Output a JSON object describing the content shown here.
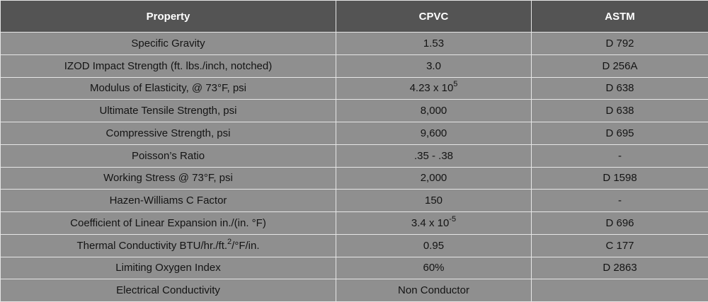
{
  "table": {
    "headers": [
      "Property",
      "CPVC",
      "ASTM"
    ],
    "rows": [
      {
        "property": "Specific Gravity",
        "cpvc": "1.53",
        "astm": "D 792"
      },
      {
        "property": "IZOD Impact Strength (ft. lbs./inch, notched)",
        "cpvc": "3.0",
        "astm": "D 256A"
      },
      {
        "property": "Modulus of Elasticity, @ 73°F, psi",
        "cpvc": "4.23 x 10",
        "cpvc_sup": "5",
        "astm": "D 638"
      },
      {
        "property": "Ultimate Tensile Strength, psi",
        "cpvc": "8,000",
        "astm": "D 638"
      },
      {
        "property": "Compressive Strength, psi",
        "cpvc": "9,600",
        "astm": "D 695"
      },
      {
        "property": "Poisson’s Ratio",
        "cpvc": ".35 - .38",
        "astm": "-"
      },
      {
        "property": "Working Stress @ 73°F, psi",
        "cpvc": "2,000",
        "astm": "D 1598"
      },
      {
        "property": "Hazen-Williams C Factor",
        "cpvc": "150",
        "astm": "-"
      },
      {
        "property": "Coefficient of Linear Expansion in./(in. °F)",
        "cpvc": "3.4 x 10",
        "cpvc_sup": "-5",
        "astm": "D 696"
      },
      {
        "property": "Thermal Conductivity BTU/hr./ft.",
        "property_sup": "2",
        "property_tail": "/°F/in.",
        "cpvc": "0.95",
        "astm": "C 177"
      },
      {
        "property": "Limiting Oxygen Index",
        "cpvc": "60%",
        "astm": "D 2863"
      },
      {
        "property": "Electrical Conductivity",
        "cpvc": "Non Conductor",
        "astm": ""
      }
    ]
  }
}
